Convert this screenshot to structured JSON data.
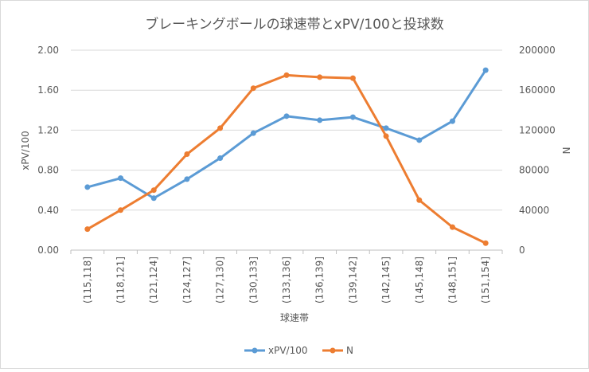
{
  "chart_data": {
    "type": "line",
    "title": "ブレーキングボールの球速帯とxPV/100と投球数",
    "xlabel": "球速帯",
    "ylabel_left": "xPV/100",
    "ylabel_right": "N",
    "categories": [
      "(115,118]",
      "(118,121]",
      "(121,124]",
      "(124,127]",
      "(127,130]",
      "(130,133]",
      "(133,136]",
      "(136,139]",
      "(139,142]",
      "(142,145]",
      "(145,148]",
      "(148,151]",
      "(151,154]"
    ],
    "y_left_ticks": [
      "0.00",
      "0.40",
      "0.80",
      "1.20",
      "1.60",
      "2.00"
    ],
    "y_right_ticks": [
      "0",
      "40000",
      "80000",
      "120000",
      "160000",
      "200000"
    ],
    "ylim_left": [
      0,
      2.0
    ],
    "ylim_right": [
      0,
      200000
    ],
    "grid": true,
    "legend": "bottom",
    "series": [
      {
        "name": "xPV/100",
        "axis": "left",
        "color": "#5B9BD5",
        "values": [
          0.63,
          0.72,
          0.52,
          0.71,
          0.92,
          1.17,
          1.34,
          1.3,
          1.33,
          1.22,
          1.1,
          1.29,
          1.8
        ]
      },
      {
        "name": "N",
        "axis": "right",
        "color": "#ED7D31",
        "values": [
          21000,
          40000,
          60000,
          96000,
          122000,
          162000,
          175000,
          173000,
          172000,
          114000,
          50000,
          23000,
          7000
        ]
      }
    ]
  }
}
